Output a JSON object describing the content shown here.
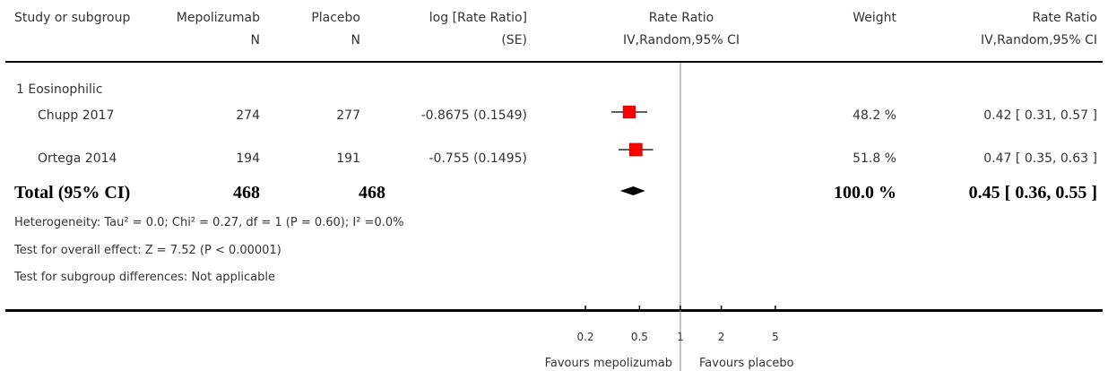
{
  "header": {
    "study": "Study or subgroup",
    "mepo": "Mepolizumab",
    "mepo_n": "N",
    "placebo": "Placebo",
    "placebo_n": "N",
    "lograte": "log [Rate Ratio]",
    "lograte_se": "(SE)",
    "rr_plot": "Rate Ratio",
    "rr_plot_method": "IV,Random,95% CI",
    "weight": "Weight",
    "rr": "Rate Ratio",
    "rr_method": "IV,Random,95% CI"
  },
  "subgroup": "1 Eosinophilic",
  "total": {
    "label": "Total (95% CI)",
    "mepo_n": "468",
    "placebo_n": "468",
    "weight": "100.0 %",
    "rr_text": "0.45 [ 0.36, 0.55 ]"
  },
  "notes": {
    "heterogeneity": "Heterogeneity: Tau² = 0.0; Chi² = 0.27, df = 1 (P = 0.60); I² =0.0%",
    "overall": "Test for overall effect: Z = 7.52 (P < 0.00001)",
    "subgroup_diff": "Test for subgroup differences: Not applicable"
  },
  "axis": {
    "favours_left": "Favours mepolizumab",
    "favours_right": "Favours placebo"
  },
  "colors": {
    "marker": "#ff0000",
    "diamond": "#000000"
  },
  "chart_data": {
    "type": "forest",
    "x_scale": "log",
    "xlim": [
      0.2,
      5
    ],
    "ticks": [
      {
        "value": 0.2,
        "label": "0.2"
      },
      {
        "value": 0.5,
        "label": "0.5"
      },
      {
        "value": 1,
        "label": "1"
      },
      {
        "value": 2,
        "label": "2"
      },
      {
        "value": 5,
        "label": "5"
      }
    ],
    "studies": [
      {
        "name": "Chupp 2017",
        "mepo_n": "274",
        "placebo_n": "277",
        "log_se": "-0.8675 (0.1549)",
        "weight": "48.2 %",
        "rr_text": "0.42 [ 0.31, 0.57 ]",
        "rr": 0.42,
        "lower": 0.31,
        "upper": 0.57,
        "weight_pct": 48.2
      },
      {
        "name": "Ortega 2014",
        "mepo_n": "194",
        "placebo_n": "191",
        "log_se": "-0.755 (0.1495)",
        "weight": "51.8 %",
        "rr_text": "0.47 [ 0.35, 0.63 ]",
        "rr": 0.47,
        "lower": 0.35,
        "upper": 0.63,
        "weight_pct": 51.8
      }
    ],
    "pooled": {
      "rr": 0.45,
      "lower": 0.36,
      "upper": 0.55
    }
  }
}
